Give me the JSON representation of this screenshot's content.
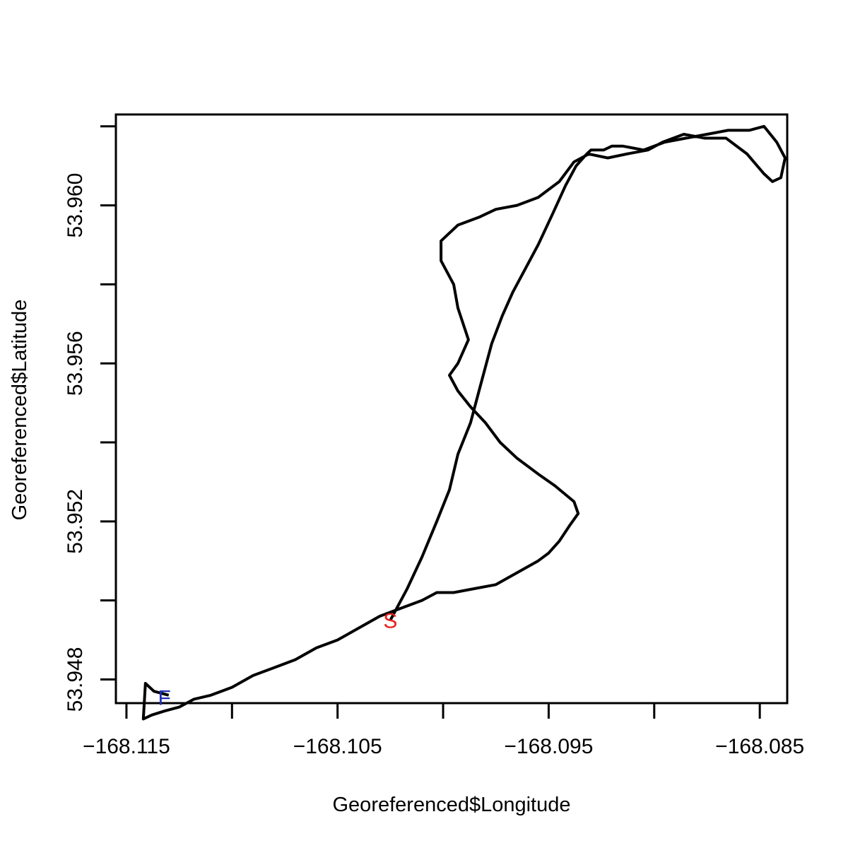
{
  "chart_data": {
    "type": "line",
    "xlabel": "Georeferenced$Longitude",
    "ylabel": "Georeferenced$Latitude",
    "xlim": [
      -168.1155,
      -168.0837
    ],
    "ylim": [
      53.9474,
      53.9623
    ],
    "x_ticks": [
      -168.115,
      -168.11,
      -168.105,
      -168.1,
      -168.095,
      -168.09,
      -168.085
    ],
    "x_tick_labels": [
      "−168.115",
      "",
      "−168.105",
      "",
      "−168.095",
      "",
      "−168.085"
    ],
    "y_ticks": [
      53.948,
      53.95,
      53.952,
      53.954,
      53.956,
      53.958,
      53.96,
      53.962
    ],
    "y_tick_labels": [
      "53.948",
      "",
      "53.952",
      "",
      "53.956",
      "",
      "53.960",
      ""
    ],
    "grid": false,
    "line_color": "#000000",
    "series": [
      {
        "x": [
          -168.1025,
          -168.1017,
          -168.101,
          -168.1003,
          -168.0997,
          -168.0993,
          -168.0987,
          -168.0983,
          -168.098,
          -168.0977,
          -168.0972,
          -168.0967,
          -168.0962,
          -168.0955,
          -168.0948,
          -168.0942,
          -168.0937,
          -168.0932,
          -168.093,
          -168.0927,
          -168.0924,
          -168.092,
          -168.0915,
          -168.0905,
          -168.0895,
          -168.0885,
          -168.0875,
          -168.0865,
          -168.0855,
          -168.0848,
          -168.0842,
          -168.0838,
          -168.084,
          -168.0844,
          -168.0848,
          -168.0856,
          -168.0866,
          -168.0876,
          -168.0886,
          -168.0896,
          -168.0903,
          -168.0913,
          -168.0922,
          -168.0931,
          -168.0938,
          -168.0945,
          -168.0955,
          -168.0965,
          -168.0975,
          -168.0983,
          -168.0993,
          -168.1001,
          -168.1001,
          -168.0998,
          -168.0995,
          -168.0993,
          -168.0988,
          -168.0993,
          -168.0997,
          -168.0993,
          -168.0987,
          -168.098,
          -168.0973,
          -168.0965,
          -168.0955,
          -168.0947,
          -168.0938,
          -168.0936,
          -168.094,
          -168.0945,
          -168.095,
          -168.0955,
          -168.0965,
          -168.0975,
          -168.0985,
          -168.0995,
          -168.1003,
          -168.101,
          -168.102,
          -168.103,
          -168.104,
          -168.105,
          -168.106,
          -168.107,
          -168.108,
          -168.109,
          -168.11,
          -168.111,
          -168.1118,
          -168.1125,
          -168.1132,
          -168.1138,
          -168.1142,
          -168.1141,
          -168.1137,
          -168.113
        ],
        "y": [
          53.9495,
          53.9503,
          53.9511,
          53.952,
          53.9528,
          53.9537,
          53.9545,
          53.9553,
          53.9559,
          53.9565,
          53.9572,
          53.9578,
          53.9583,
          53.959,
          53.9598,
          53.9605,
          53.961,
          53.9613,
          53.9614,
          53.9614,
          53.9614,
          53.9615,
          53.9615,
          53.9614,
          53.9616,
          53.9617,
          53.9618,
          53.9619,
          53.9619,
          53.962,
          53.9616,
          53.9612,
          53.9607,
          53.9606,
          53.9608,
          53.9613,
          53.9617,
          53.9617,
          53.9618,
          53.9616,
          53.9614,
          53.9613,
          53.9612,
          53.9613,
          53.9611,
          53.9606,
          53.9602,
          53.96,
          53.9599,
          53.9597,
          53.9595,
          53.9591,
          53.9586,
          53.9583,
          53.958,
          53.9574,
          53.9566,
          53.956,
          53.9557,
          53.9553,
          53.9549,
          53.9545,
          53.954,
          53.9536,
          53.9532,
          53.9529,
          53.9525,
          53.9522,
          53.9519,
          53.9515,
          53.9512,
          53.951,
          53.9507,
          53.9504,
          53.9503,
          53.9502,
          53.9502,
          53.95,
          53.9498,
          53.9496,
          53.9493,
          53.949,
          53.9488,
          53.9485,
          53.9483,
          53.9481,
          53.9478,
          53.9476,
          53.9475,
          53.9473,
          53.9472,
          53.9471,
          53.947,
          53.9479,
          53.9477,
          53.9476
        ]
      }
    ],
    "annotations": [
      {
        "text": "S",
        "x": -168.1025,
        "y": 53.9495,
        "color": "#e8201a"
      },
      {
        "text": "F",
        "x": -168.1132,
        "y": 53.94755,
        "color": "#1f2fb8"
      }
    ]
  }
}
